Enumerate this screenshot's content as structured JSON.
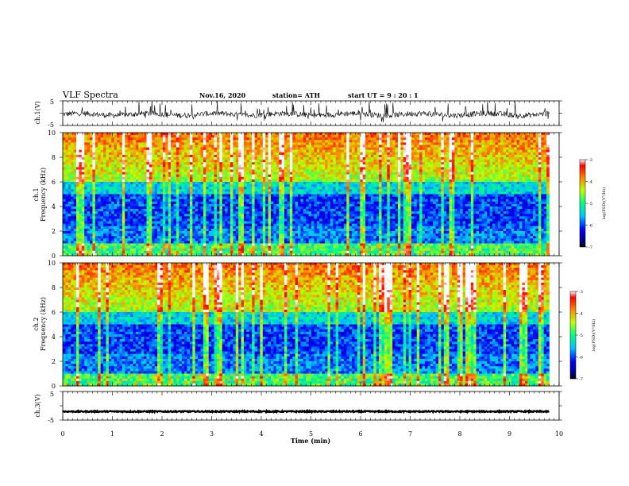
{
  "header": {
    "title": "VLF Spectra",
    "date": "Nov.16, 2020",
    "station": "station= ATH",
    "start": "start  UT  =   9 : 20 : 1"
  },
  "chart_data": [
    {
      "type": "line",
      "name": "ch1-waveform",
      "ylabel": "ch.1(V)",
      "ylim": [
        -5,
        5
      ],
      "yticks": [
        "5",
        "-5"
      ],
      "xlim": [
        0,
        10
      ],
      "x_end_data": 9.8,
      "baseline": -0.5
    },
    {
      "type": "heatmap",
      "name": "ch1-spectrogram",
      "ylabel_top": "ch.1",
      "ylabel": "Frequency  (kHz)",
      "ylim": [
        0,
        10
      ],
      "yticks": [
        "0",
        "2",
        "4",
        "6",
        "8",
        "10"
      ],
      "xlim": [
        0,
        10
      ],
      "x_end_data": 9.8,
      "colorbar": {
        "label": "log(PSD)(V²/Hz)",
        "range": [
          -7,
          -3
        ],
        "ticks": [
          "-3",
          "-4",
          "-5",
          "-6",
          "-7"
        ]
      }
    },
    {
      "type": "heatmap",
      "name": "ch2-spectrogram",
      "ylabel_top": "ch.2",
      "ylabel": "Frequency  (kHz)",
      "ylim": [
        0,
        10
      ],
      "yticks": [
        "0",
        "2",
        "4",
        "6",
        "8",
        "10"
      ],
      "xlim": [
        0,
        10
      ],
      "x_end_data": 9.8,
      "colorbar": {
        "label": "log(PSD)(V²/Hz)",
        "range": [
          -7,
          -3
        ],
        "ticks": [
          "-3",
          "-4",
          "-5",
          "-6",
          "-7"
        ]
      }
    },
    {
      "type": "line",
      "name": "ch3-waveform",
      "ylabel": "ch.3(V)",
      "ylim": [
        -5,
        5
      ],
      "yticks": [
        "5",
        "-5"
      ],
      "xlim": [
        0,
        10
      ],
      "x_end_data": 9.8,
      "baseline": -2
    }
  ],
  "xaxis": {
    "label": "Time  (min)",
    "ticks": [
      "0",
      "1",
      "2",
      "3",
      "4",
      "5",
      "6",
      "7",
      "8",
      "9",
      "10"
    ]
  }
}
